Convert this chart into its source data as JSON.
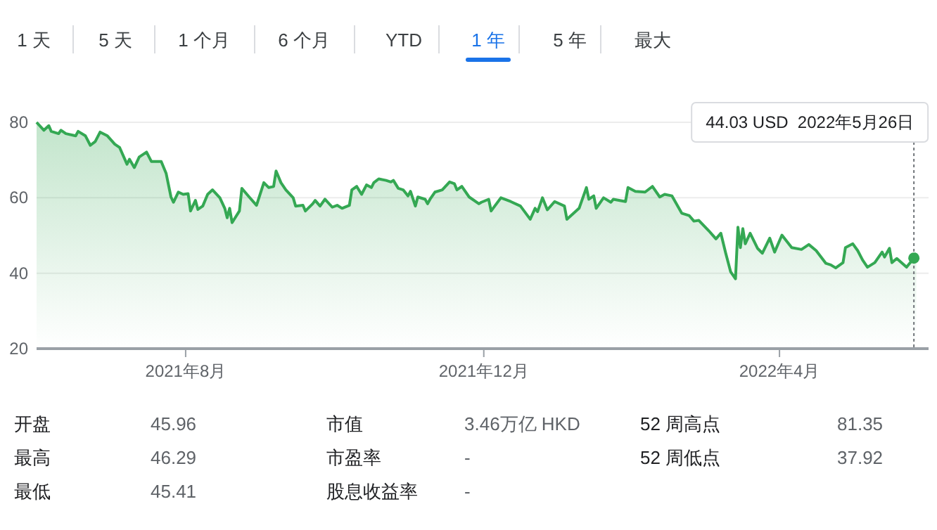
{
  "chart_data": [
    {
      "type": "other",
      "categories": [
        "1 天",
        "5 天",
        "1 个月",
        "6 个月",
        "YTD",
        "1 年",
        "5 年",
        "最大"
      ],
      "colors": [
        "#3c4043",
        "#3c4043",
        "#3c4043",
        "#3c4043",
        "#3c4043",
        "#1a73e8",
        "#3c4043",
        "#3c4043"
      ]
    },
    {
      "type": "area",
      "grid": "y",
      "x": [
        "2021-06-01",
        "2021-06-04",
        "2021-06-06",
        "2021-06-07",
        "2021-06-10",
        "2021-06-11",
        "2021-06-13",
        "2021-06-17",
        "2021-06-18",
        "2021-06-21",
        "2021-06-23",
        "2021-06-25",
        "2021-06-27",
        "2021-06-30",
        "2021-07-03",
        "2021-07-05",
        "2021-07-08",
        "2021-07-09",
        "2021-07-11",
        "2021-07-13",
        "2021-07-16",
        "2021-07-18",
        "2021-07-22",
        "2021-07-24",
        "2021-07-26",
        "2021-07-27",
        "2021-07-29",
        "2021-07-31",
        "2021-08-02",
        "2021-08-03",
        "2021-08-05",
        "2021-08-06",
        "2021-08-08",
        "2021-08-10",
        "2021-08-12",
        "2021-08-15",
        "2021-08-17",
        "2021-08-18",
        "2021-08-19",
        "2021-08-20",
        "2021-08-23",
        "2021-08-24",
        "2021-08-27",
        "2021-08-30",
        "2021-09-02",
        "2021-09-04",
        "2021-09-06",
        "2021-09-07",
        "2021-09-09",
        "2021-09-11",
        "2021-09-14",
        "2021-09-15",
        "2021-09-18",
        "2021-09-19",
        "2021-09-22",
        "2021-09-23",
        "2021-09-25",
        "2021-09-27",
        "2021-09-30",
        "2021-10-02",
        "2021-10-04",
        "2021-10-07",
        "2021-10-08",
        "2021-10-10",
        "2021-10-12",
        "2021-10-14",
        "2021-10-16",
        "2021-10-17",
        "2021-10-19",
        "2021-10-22",
        "2021-10-24",
        "2021-10-25",
        "2021-10-27",
        "2021-10-29",
        "2021-10-31",
        "2021-11-01",
        "2021-11-03",
        "2021-11-04",
        "2021-11-07",
        "2021-11-08",
        "2021-11-09",
        "2021-11-11",
        "2021-11-14",
        "2021-11-17",
        "2021-11-19",
        "2021-11-20",
        "2021-11-22",
        "2021-11-25",
        "2021-11-29",
        "2021-11-30",
        "2021-12-03",
        "2021-12-04",
        "2021-12-08",
        "2021-12-12",
        "2021-12-16",
        "2021-12-20",
        "2021-12-22",
        "2021-12-23",
        "2021-12-25",
        "2021-12-27",
        "2021-12-30",
        "2022-01-03",
        "2022-01-04",
        "2022-01-09",
        "2022-01-12",
        "2022-01-13",
        "2022-01-15",
        "2022-01-16",
        "2022-01-19",
        "2022-01-22",
        "2022-01-23",
        "2022-01-28",
        "2022-01-29",
        "2022-02-01",
        "2022-02-05",
        "2022-02-08",
        "2022-02-11",
        "2022-02-13",
        "2022-02-16",
        "2022-02-20",
        "2022-02-23",
        "2022-02-25",
        "2022-02-27",
        "2022-03-03",
        "2022-03-06",
        "2022-03-08",
        "2022-03-10",
        "2022-03-12",
        "2022-03-14",
        "2022-03-15",
        "2022-03-16",
        "2022-03-17",
        "2022-03-18",
        "2022-03-20",
        "2022-03-23",
        "2022-03-25",
        "2022-03-28",
        "2022-03-30",
        "2022-04-02",
        "2022-04-06",
        "2022-04-10",
        "2022-04-13",
        "2022-04-16",
        "2022-04-20",
        "2022-04-22",
        "2022-04-24",
        "2022-04-27",
        "2022-04-28",
        "2022-05-01",
        "2022-05-03",
        "2022-05-05",
        "2022-05-07",
        "2022-05-10",
        "2022-05-13",
        "2022-05-14",
        "2022-05-16",
        "2022-05-17",
        "2022-05-19",
        "2022-05-23",
        "2022-05-26",
        "2022-05-27"
      ],
      "series": [
        {
          "color": "#34a853",
          "values": [
            80.0,
            77.9,
            79.1,
            77.6,
            77.0,
            77.9,
            77.0,
            76.4,
            77.6,
            76.4,
            73.9,
            74.9,
            77.4,
            76.4,
            74.2,
            73.3,
            68.9,
            70.2,
            68.0,
            70.8,
            72.1,
            69.6,
            69.6,
            66.5,
            60.2,
            58.8,
            61.5,
            60.9,
            61.1,
            56.5,
            59.3,
            56.9,
            57.8,
            60.9,
            62.1,
            60.0,
            57.2,
            54.7,
            57.2,
            53.4,
            56.5,
            62.5,
            60.2,
            58.0,
            64.0,
            62.7,
            63.0,
            67.1,
            64.0,
            62.1,
            60.0,
            57.8,
            58.0,
            56.5,
            58.4,
            59.3,
            57.8,
            59.6,
            57.5,
            58.0,
            57.2,
            58.0,
            62.1,
            63.0,
            60.9,
            63.4,
            62.7,
            64.0,
            65.0,
            64.6,
            64.2,
            64.6,
            62.5,
            62.1,
            60.5,
            61.7,
            57.8,
            60.2,
            59.6,
            58.4,
            59.6,
            61.5,
            62.1,
            64.2,
            63.7,
            62.1,
            63.0,
            60.2,
            58.4,
            58.8,
            59.6,
            56.5,
            60.0,
            59.0,
            57.8,
            54.3,
            57.2,
            56.3,
            60.0,
            56.8,
            59.0,
            57.8,
            54.3,
            57.2,
            62.7,
            59.6,
            60.5,
            57.2,
            60.0,
            58.8,
            59.6,
            59.0,
            62.7,
            61.7,
            61.5,
            63.0,
            60.2,
            60.9,
            60.5,
            55.9,
            55.3,
            53.8,
            54.0,
            51.3,
            49.1,
            50.6,
            45.3,
            40.4,
            38.5,
            52.2,
            46.8,
            51.8,
            47.8,
            50.6,
            46.6,
            45.3,
            49.3,
            45.6,
            50.1,
            46.8,
            46.3,
            47.6,
            46.0,
            42.6,
            42.2,
            41.4,
            42.8,
            46.8,
            47.8,
            46.0,
            43.5,
            41.6,
            42.8,
            45.6,
            44.3,
            46.6,
            42.8,
            43.9,
            41.6,
            44.0,
            45.3
          ]
        }
      ],
      "xlim": [
        "2021-06-01",
        "2022-06-01"
      ],
      "xticks": [
        {
          "value": "2021-08-01",
          "label": "2021年8月"
        },
        {
          "value": "2021-12-01",
          "label": "2021年12月"
        },
        {
          "value": "2022-04-01",
          "label": "2022年4月"
        }
      ],
      "ylim": [
        20,
        80
      ],
      "yticks": [
        20,
        40,
        60,
        80
      ],
      "ref_lines": [
        {
          "axis": "x",
          "value": "2022-05-26",
          "line_style": "dotted"
        }
      ],
      "annotations": [
        "44.03 USD  2022年5月26日"
      ]
    },
    {
      "type": "other",
      "annotations": [
        "开盘",
        "45.96",
        "市值",
        "3.46万亿 HKD",
        "52 周高点",
        "81.35",
        "最高",
        "46.29",
        "市盈率",
        "-",
        "52 周低点",
        "37.92",
        "最低",
        "45.41",
        "股息收益率",
        "-"
      ]
    }
  ]
}
